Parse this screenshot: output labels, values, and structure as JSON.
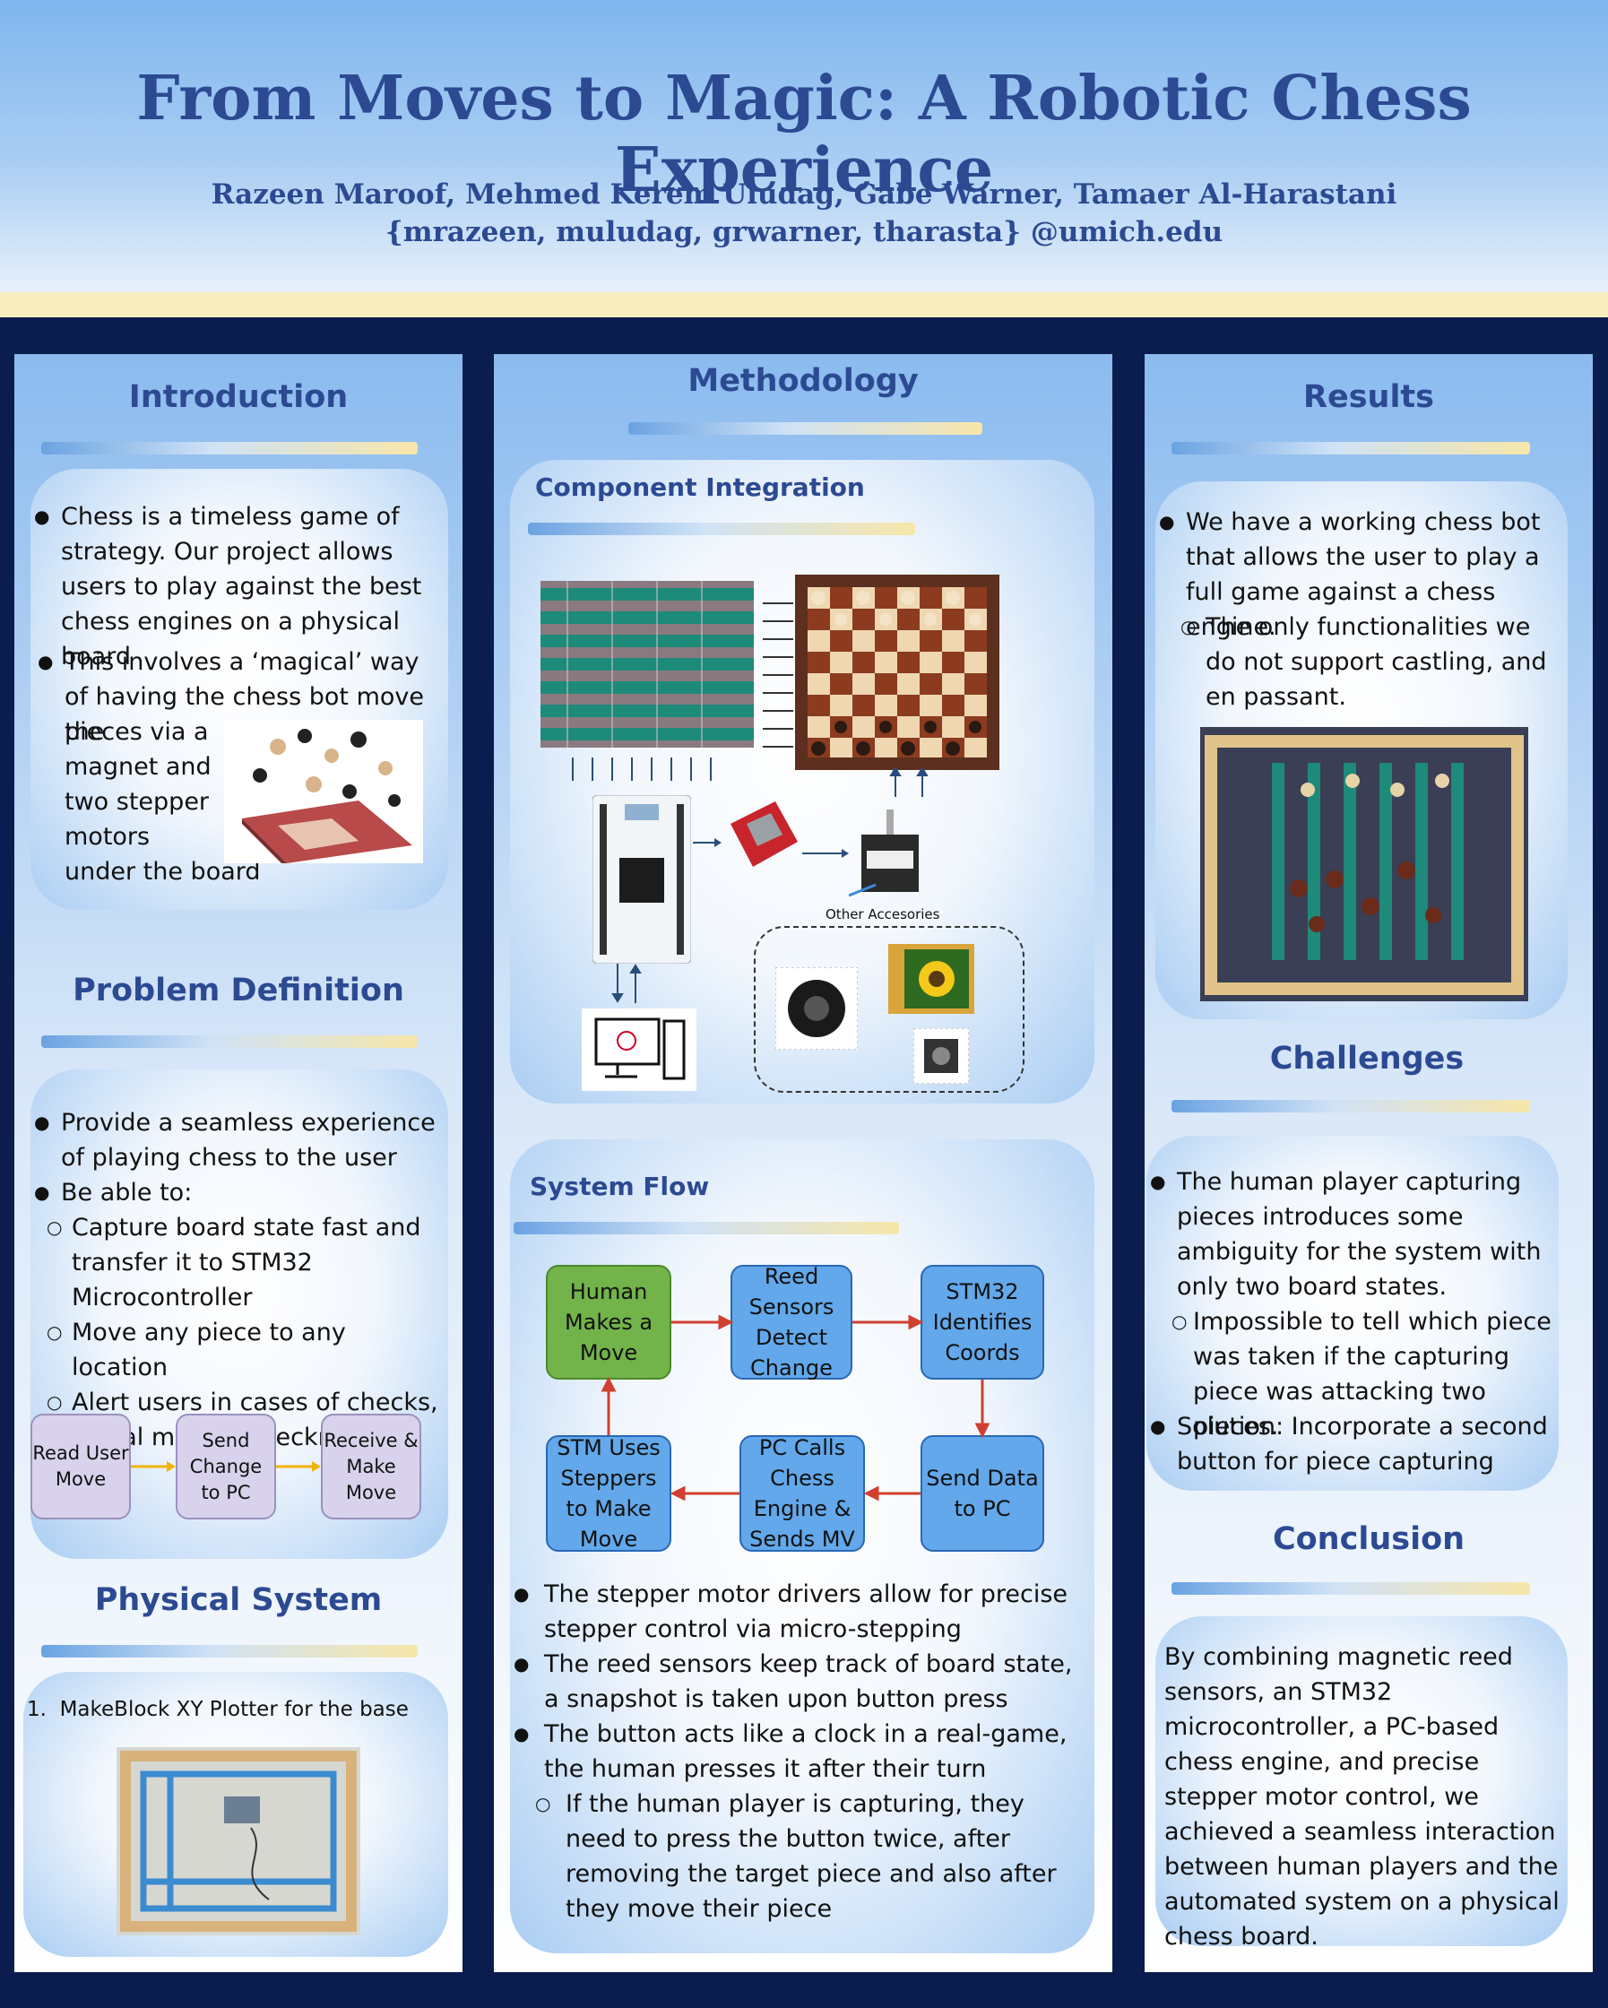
{
  "title": "From Moves to Magic: A Robotic Chess Experience",
  "authors": "Razeen Maroof, Mehmed Kerem Uludag, Gabe Warner, Tamaer Al-Harastani",
  "emails": "{mrazeen, muludag, grwarner, tharasta} @umich.edu",
  "introduction": {
    "heading": "Introduction",
    "b1": "Chess is a timeless game of strategy. Our project allows users to play against the best chess engines on a physical board",
    "b2_top": "This involves a ‘magical’ way of having the chess bot move the",
    "b2_lines": [
      "pieces via a",
      "magnet and",
      "two stepper",
      "motors",
      "under the board"
    ]
  },
  "problem": {
    "heading": "Problem Definition",
    "b1": "Provide a seamless experience of playing chess to the user",
    "b2": "Be able to:",
    "subs": [
      "Capture board state fast and transfer it to STM32 Microcontroller",
      "Move any piece to any location",
      "Alert users in cases of checks, illegal moves, checkmates, etc."
    ],
    "flow": [
      "Read User Move",
      "Send Change to PC",
      "Receive & Make Move"
    ]
  },
  "physical": {
    "heading": "Physical System",
    "item": "MakeBlock XY Plotter for the base"
  },
  "methodology": {
    "heading": "Methodology",
    "component_heading": "Component Integration",
    "other_accessories": "Other Accesories",
    "flow_heading": "System Flow",
    "flow": [
      "Human Makes a Move",
      "Reed Sensors Detect Change",
      "STM32 Identifies Coords",
      "STM Uses Steppers to Make Move",
      "PC Calls Chess Engine & Sends MV",
      "Send Data to PC"
    ],
    "bullets": [
      "The stepper motor drivers allow for precise stepper control via micro-stepping",
      "The reed sensors keep track of board state, a snapshot is taken upon button press",
      "The button acts like a clock in a real-game, the human presses it after their turn"
    ],
    "sub": "If the human player is capturing, they need to press the button twice, after removing the target piece and also after they move their piece"
  },
  "results": {
    "heading": "Results",
    "b1": "We have a working chess bot that allows the user to play a full game against a chess engine.",
    "sub": "The only functionalities we do not support castling, and en passant."
  },
  "challenges": {
    "heading": "Challenges",
    "b1": "The human player capturing pieces introduces some ambiguity for the system with only two board states.",
    "sub": "Impossible to tell which piece was taken if the capturing piece was attacking two pieces.",
    "b2": "Solution: Incorporate a second button for piece capturing"
  },
  "conclusion": {
    "heading": "Conclusion",
    "text": "By combining magnetic reed sensors, an STM32 microcontroller, a PC-based chess engine, and precise stepper motor control, we achieved a seamless interaction between human players and the automated system on a physical chess board."
  }
}
